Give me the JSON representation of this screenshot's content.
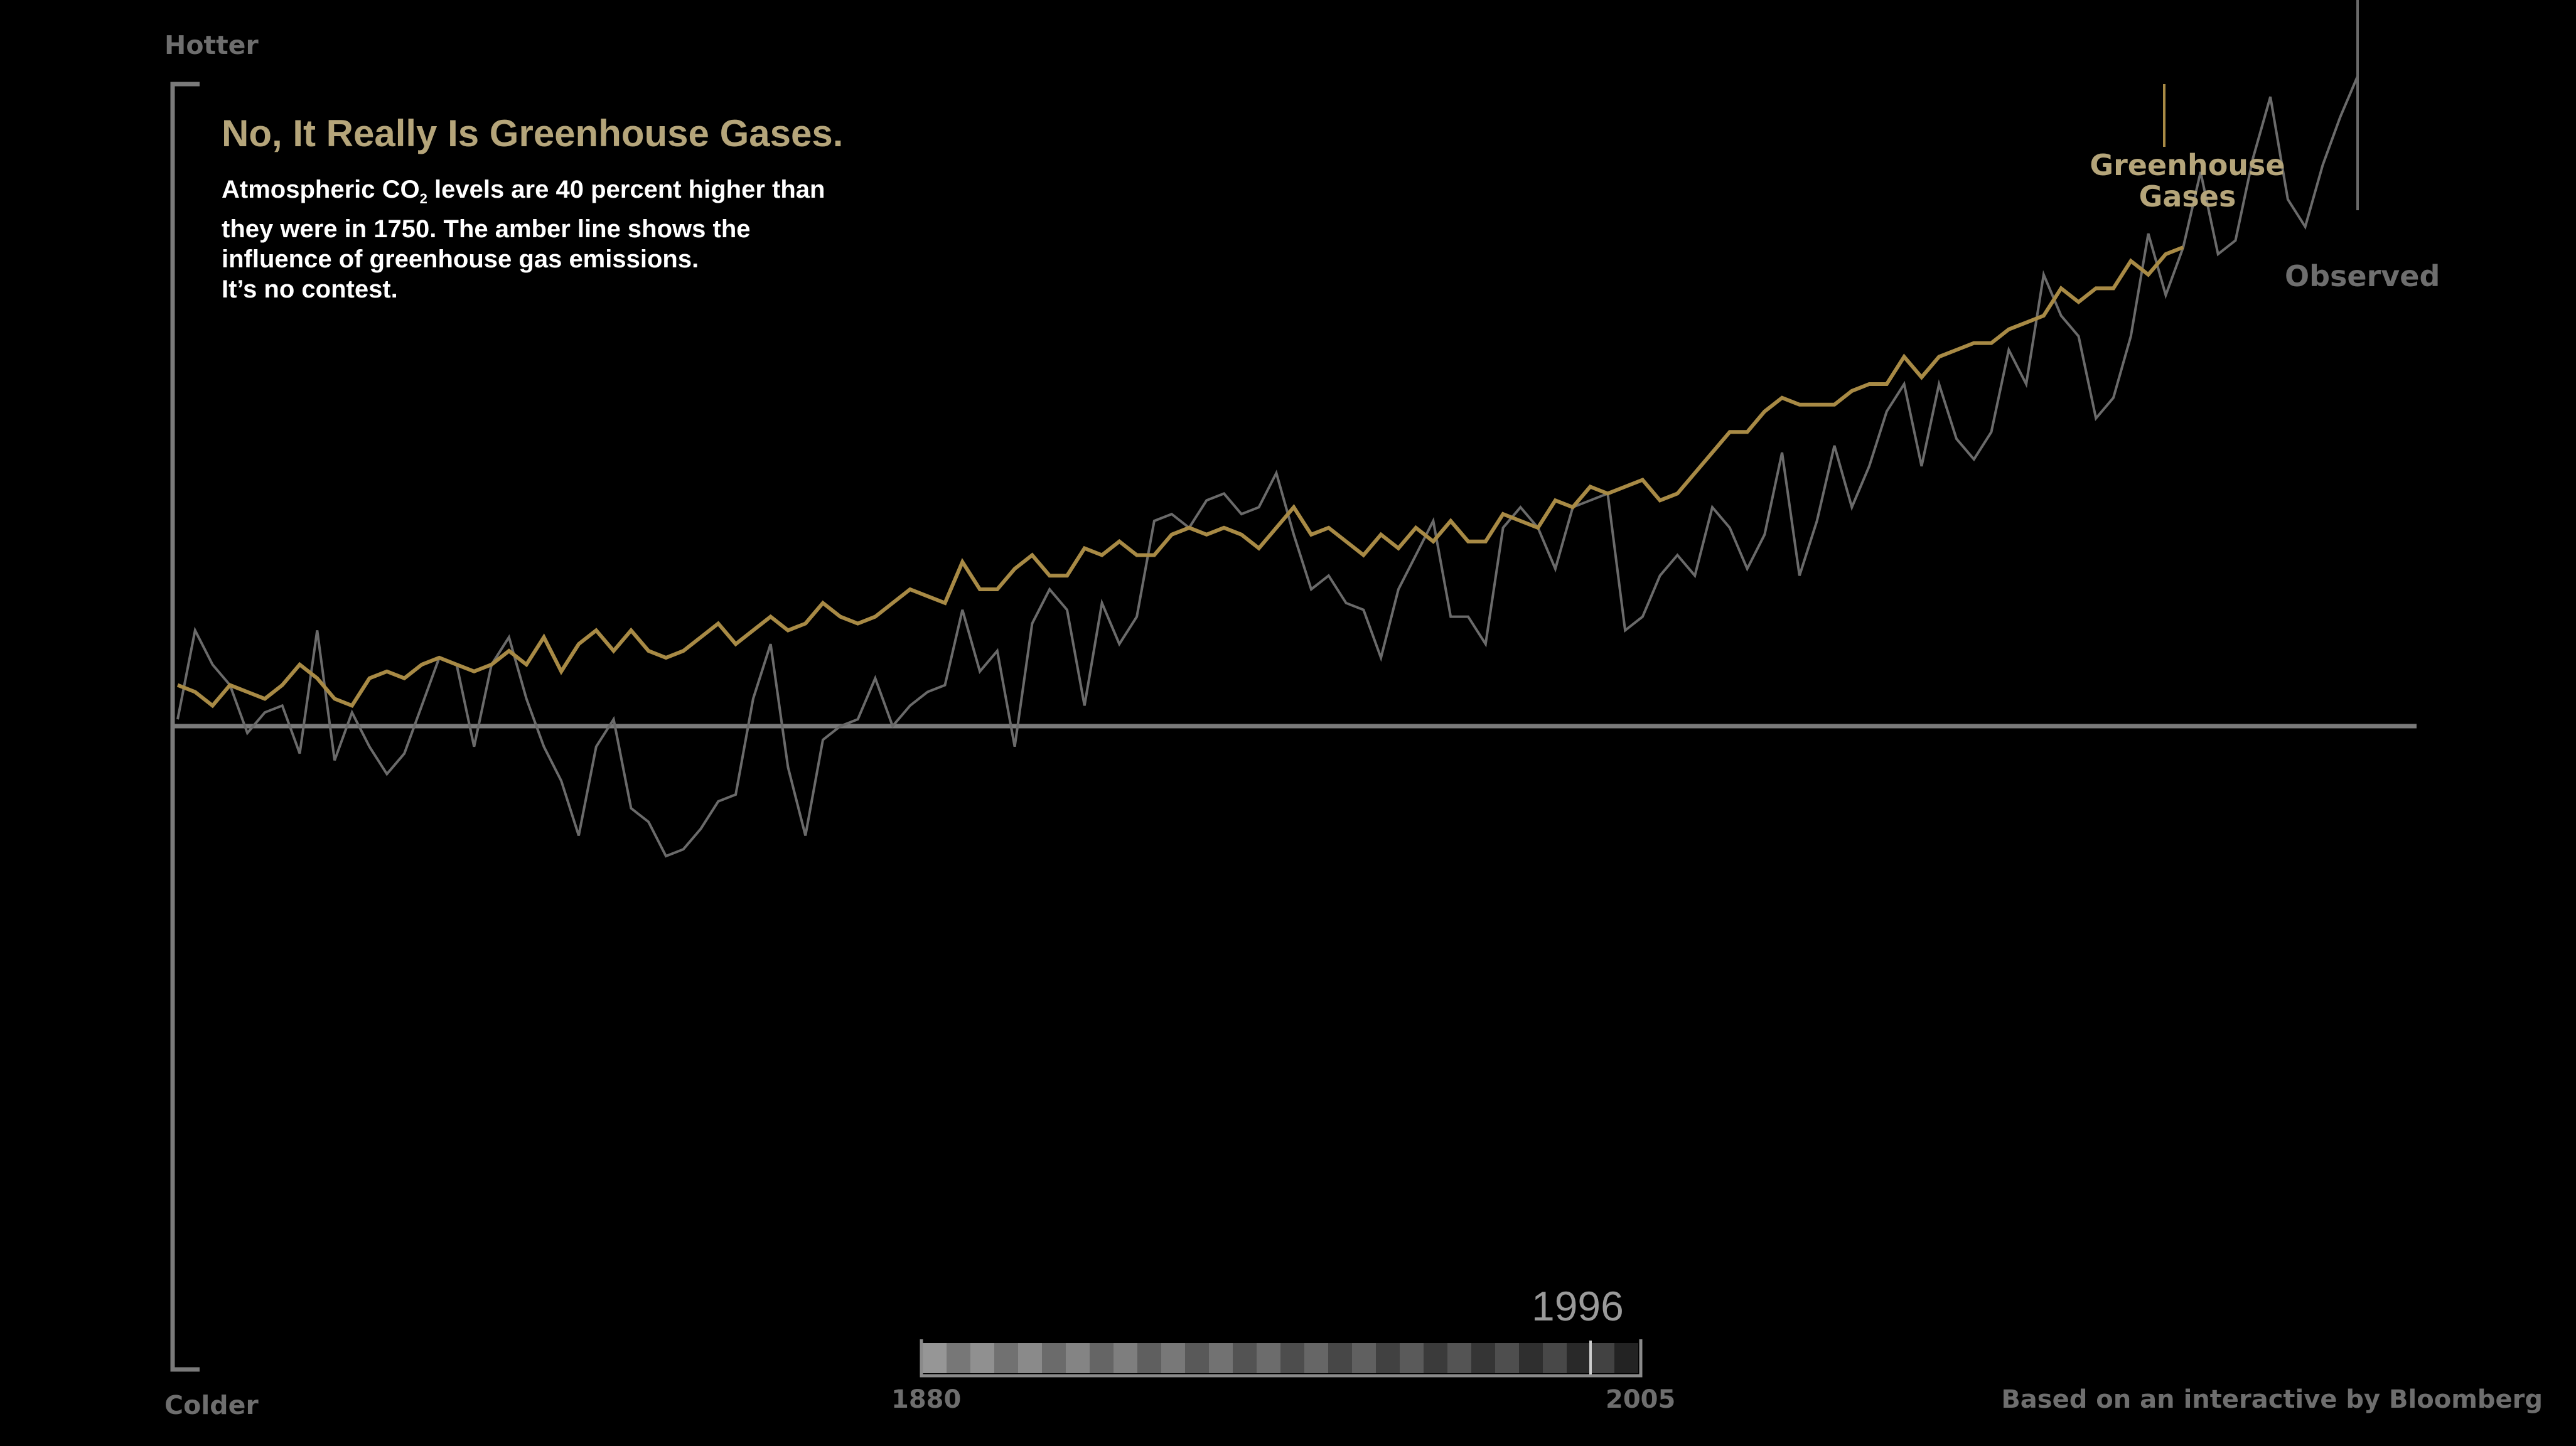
{
  "labels": {
    "hotter": "Hotter",
    "colder": "Colder",
    "title": "No, It Really Is Greenhouse Gases.",
    "subtitle_line1_pre": "Atmospheric CO",
    "subtitle_line1_sub": "2",
    "subtitle_line1_post": " levels are 40 percent higher than",
    "subtitle_line2": "they were in 1750.  The amber line shows the",
    "subtitle_line3": "influence of greenhouse gas emissions.",
    "subtitle_line4": "It’s no contest.",
    "series_ghg_line1": "Greenhouse",
    "series_ghg_line2": "Gases",
    "series_obs": "Observed",
    "year_display": "1996",
    "timeline_start": "1880",
    "timeline_end": "2005",
    "credit": "Based on an interactive by Bloomberg"
  },
  "colors": {
    "ghg": "#a88a45",
    "observed": "#6a6a6a",
    "axis": "#7a7a7a",
    "title": "#b5a57a"
  },
  "chart_data": {
    "type": "line",
    "x_start": 1880,
    "x_end": 2005,
    "ylim": [
      -1,
      1
    ],
    "baseline": 0,
    "series": [
      {
        "name": "Greenhouse Gases",
        "values": [
          0.06,
          0.05,
          0.03,
          0.06,
          0.05,
          0.04,
          0.06,
          0.09,
          0.07,
          0.04,
          0.03,
          0.07,
          0.08,
          0.07,
          0.09,
          0.1,
          0.09,
          0.08,
          0.09,
          0.11,
          0.09,
          0.13,
          0.08,
          0.12,
          0.14,
          0.11,
          0.14,
          0.11,
          0.1,
          0.11,
          0.13,
          0.15,
          0.12,
          0.14,
          0.16,
          0.14,
          0.15,
          0.18,
          0.16,
          0.15,
          0.16,
          0.18,
          0.2,
          0.19,
          0.18,
          0.24,
          0.2,
          0.2,
          0.23,
          0.25,
          0.22,
          0.22,
          0.26,
          0.25,
          0.27,
          0.25,
          0.25,
          0.28,
          0.29,
          0.28,
          0.29,
          0.28,
          0.26,
          0.29,
          0.32,
          0.28,
          0.29,
          0.27,
          0.25,
          0.28,
          0.26,
          0.29,
          0.27,
          0.3,
          0.27,
          0.27,
          0.31,
          0.3,
          0.29,
          0.33,
          0.32,
          0.35,
          0.34,
          0.35,
          0.36,
          0.33,
          0.34,
          0.37,
          0.4,
          0.43,
          0.43,
          0.46,
          0.48,
          0.47,
          0.47,
          0.47,
          0.49,
          0.5,
          0.5,
          0.54,
          0.51,
          0.54,
          0.55,
          0.56,
          0.56,
          0.58,
          0.59,
          0.6,
          0.64,
          0.62,
          0.64,
          0.64,
          0.68,
          0.66,
          0.69,
          0.7
        ],
        "x_years": "1880-1995"
      },
      {
        "name": "Observed",
        "values": [
          0.01,
          0.14,
          0.09,
          0.06,
          -0.01,
          0.02,
          0.03,
          -0.04,
          0.14,
          -0.05,
          0.02,
          -0.03,
          -0.07,
          -0.04,
          0.03,
          0.1,
          0.09,
          -0.03,
          0.09,
          0.13,
          0.04,
          -0.03,
          -0.08,
          -0.16,
          -0.03,
          0.01,
          -0.12,
          -0.14,
          -0.19,
          -0.18,
          -0.15,
          -0.11,
          -0.1,
          0.04,
          0.12,
          -0.06,
          -0.16,
          -0.02,
          0.0,
          0.01,
          0.07,
          0.0,
          0.03,
          0.05,
          0.06,
          0.17,
          0.08,
          0.11,
          -0.03,
          0.15,
          0.2,
          0.17,
          0.03,
          0.18,
          0.12,
          0.16,
          0.3,
          0.31,
          0.29,
          0.33,
          0.34,
          0.31,
          0.32,
          0.37,
          0.28,
          0.2,
          0.22,
          0.18,
          0.17,
          0.1,
          0.2,
          0.25,
          0.3,
          0.16,
          0.16,
          0.12,
          0.29,
          0.32,
          0.29,
          0.23,
          0.32,
          0.33,
          0.34,
          0.14,
          0.16,
          0.22,
          0.25,
          0.22,
          0.32,
          0.29,
          0.23,
          0.28,
          0.4,
          0.22,
          0.3,
          0.41,
          0.32,
          0.38,
          0.46,
          0.5,
          0.38,
          0.5,
          0.42,
          0.39,
          0.43,
          0.55,
          0.5,
          0.66,
          0.6,
          0.57,
          0.45,
          0.48,
          0.57,
          0.72,
          0.63,
          0.7,
          0.81,
          0.69,
          0.71,
          0.83,
          0.92,
          0.77,
          0.73,
          0.82,
          0.89,
          0.95
        ],
        "x_years": "1880-2005"
      }
    ]
  }
}
